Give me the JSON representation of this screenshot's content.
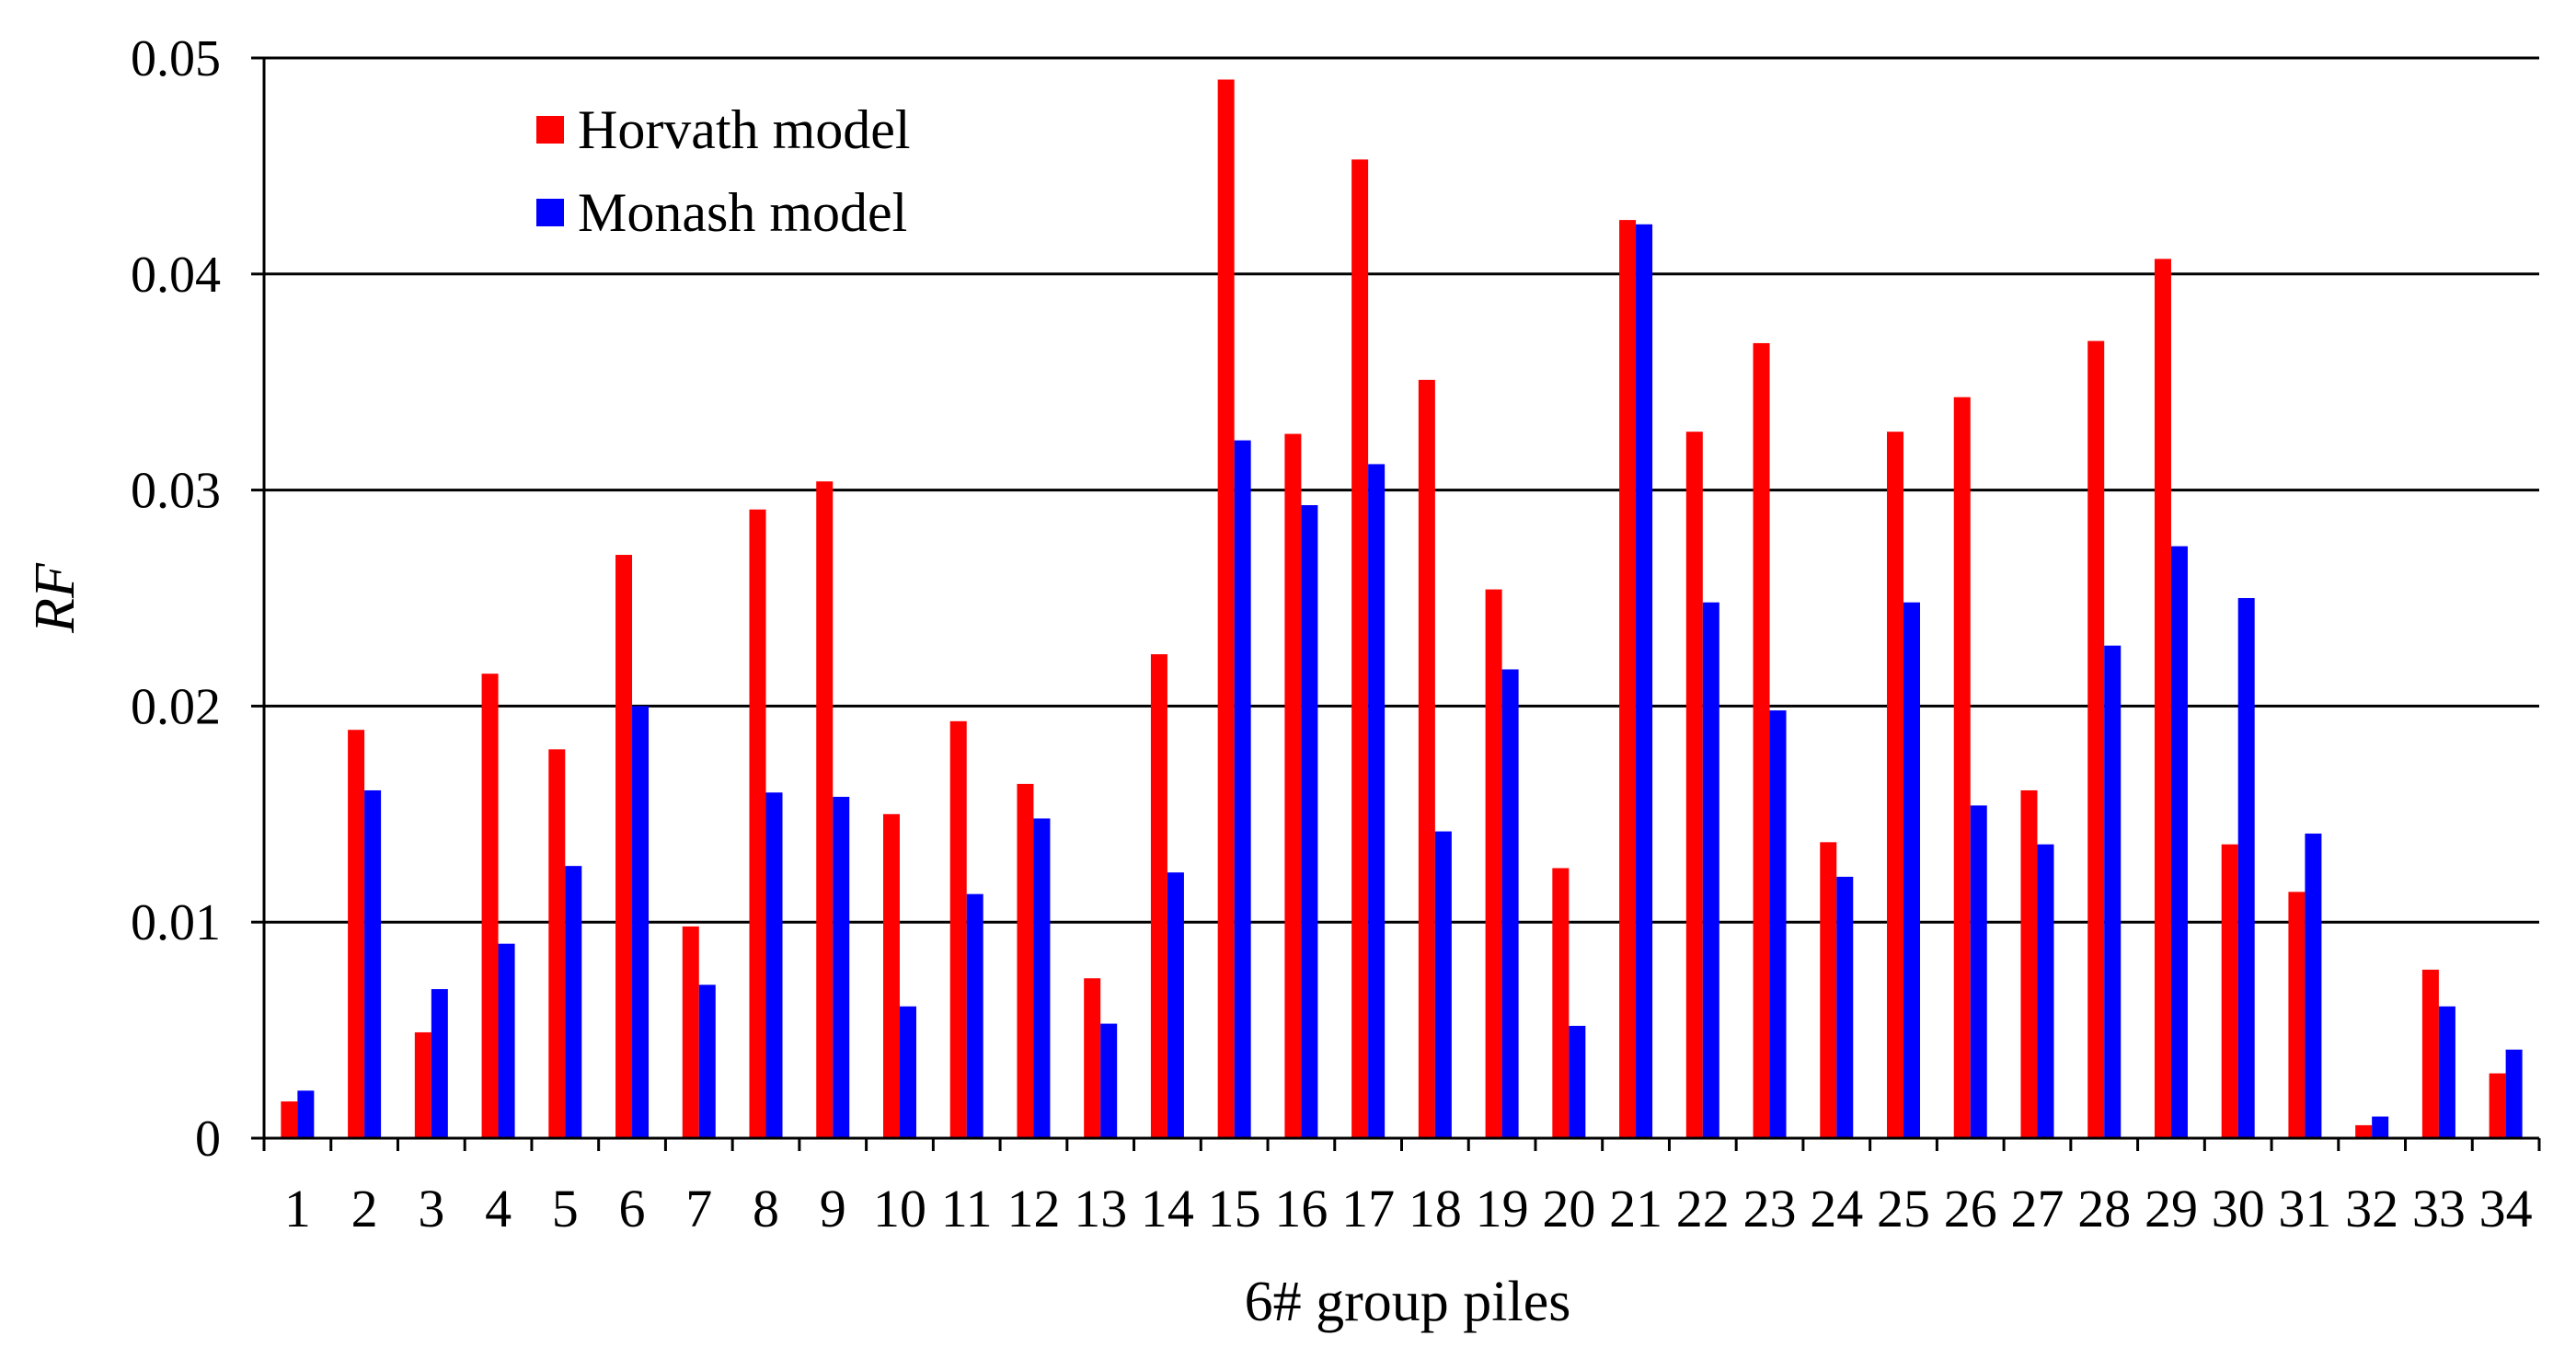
{
  "chart_data": {
    "type": "bar",
    "title": "",
    "xlabel": "6# group piles",
    "ylabel": "RF",
    "ylim": [
      0,
      0.05
    ],
    "yticks": [
      0,
      0.01,
      0.02,
      0.03,
      0.04,
      0.05
    ],
    "ytick_labels": [
      "0",
      "0.01",
      "0.02",
      "0.03",
      "0.04",
      "0.05"
    ],
    "grid": true,
    "legend_position": "top-left",
    "categories": [
      "1",
      "2",
      "3",
      "4",
      "5",
      "6",
      "7",
      "8",
      "9",
      "10",
      "11",
      "12",
      "13",
      "14",
      "15",
      "16",
      "17",
      "18",
      "19",
      "20",
      "21",
      "22",
      "23",
      "24",
      "25",
      "26",
      "27",
      "28",
      "29",
      "30",
      "31",
      "32",
      "33",
      "34"
    ],
    "series": [
      {
        "name": "Horvath model",
        "color": "#ff0000",
        "values": [
          0.0017,
          0.0189,
          0.0049,
          0.0215,
          0.018,
          0.027,
          0.0098,
          0.0291,
          0.0304,
          0.015,
          0.0193,
          0.0164,
          0.0074,
          0.0224,
          0.049,
          0.0326,
          0.0453,
          0.0351,
          0.0254,
          0.0125,
          0.0425,
          0.0327,
          0.0368,
          0.0137,
          0.0327,
          0.0343,
          0.0161,
          0.0369,
          0.0407,
          0.0136,
          0.0114,
          0.0006,
          0.0078,
          0.003
        ]
      },
      {
        "name": "Monash model",
        "color": "#0000ff",
        "values": [
          0.0022,
          0.0161,
          0.0069,
          0.009,
          0.0126,
          0.02,
          0.0071,
          0.016,
          0.0158,
          0.0061,
          0.0113,
          0.0148,
          0.0053,
          0.0123,
          0.0323,
          0.0293,
          0.0312,
          0.0142,
          0.0217,
          0.0052,
          0.0423,
          0.0248,
          0.0198,
          0.0121,
          0.0248,
          0.0154,
          0.0136,
          0.0228,
          0.0274,
          0.025,
          0.0141,
          0.001,
          0.0061,
          0.0041
        ]
      }
    ]
  }
}
